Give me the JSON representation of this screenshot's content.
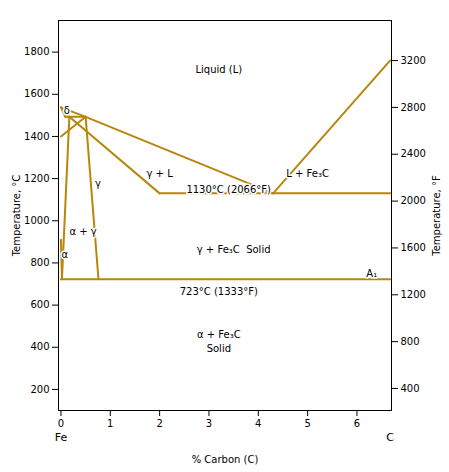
{
  "chart_data": {
    "type": "line",
    "xlabel": "% Carbon (C)",
    "ylabel": "Temperature, °C",
    "y2label": "Temperature, °F",
    "xlim": [
      -0.05,
      6.7
    ],
    "ylim": [
      100,
      1950
    ],
    "xticks": [
      0,
      1,
      2,
      3,
      4,
      5,
      6
    ],
    "yticks": [
      200,
      400,
      600,
      800,
      1000,
      1200,
      1400,
      1600,
      1800
    ],
    "y2lim": [
      212,
      3542
    ],
    "y2ticks": [
      400,
      800,
      1200,
      1600,
      2000,
      2400,
      2800,
      3200
    ],
    "color": "#B8860B",
    "segments": [
      {
        "x": [
          0.0,
          0.5
        ],
        "y": [
          1538,
          1493
        ]
      },
      {
        "x": [
          0.5,
          4.3
        ],
        "y": [
          1493,
          1130
        ]
      },
      {
        "x": [
          4.3,
          6.67
        ],
        "y": [
          1130,
          1760
        ]
      },
      {
        "x": [
          0.09,
          0.5
        ],
        "y": [
          1493,
          1493
        ]
      },
      {
        "x": [
          0.0,
          0.09
        ],
        "y": [
          1538,
          1493
        ]
      },
      {
        "x": [
          0.09,
          0.17
        ],
        "y": [
          1493,
          1493
        ]
      },
      {
        "x": [
          0.17,
          2.0
        ],
        "y": [
          1493,
          1130
        ]
      },
      {
        "x": [
          0.0,
          0.5
        ],
        "y": [
          1400,
          1493
        ]
      },
      {
        "x": [
          0.5,
          0.76
        ],
        "y": [
          1493,
          723
        ]
      },
      {
        "x": [
          0.0,
          0.02
        ],
        "y": [
          910,
          723
        ]
      },
      {
        "x": [
          0.02,
          0.17
        ],
        "y": [
          723,
          1493
        ]
      },
      {
        "x": [
          2.0,
          6.67
        ],
        "y": [
          1130,
          1130
        ]
      },
      {
        "x": [
          0.0,
          6.67
        ],
        "y": [
          723,
          723
        ]
      }
    ],
    "annotations": [
      {
        "text": "Liquid (L)",
        "x": 3.2,
        "y": 1720
      },
      {
        "text": "γ",
        "x": 0.75,
        "y": 1180
      },
      {
        "text": "γ + L",
        "x": 2.0,
        "y": 1230
      },
      {
        "text": "L + Fe₃C",
        "x": 5.0,
        "y": 1230
      },
      {
        "text": "γ + Fe₃C  Solid",
        "x": 3.5,
        "y": 870
      },
      {
        "text": "α + Fe₃C\nSolid",
        "x": 3.2,
        "y": 430
      },
      {
        "text": "δ",
        "x": 0.12,
        "y": 1530
      },
      {
        "text": "α",
        "x": 0.08,
        "y": 845
      },
      {
        "text": "A₁",
        "x": 6.3,
        "y": 755
      },
      {
        "text": "α + γ",
        "x": 0.45,
        "y": 955
      },
      {
        "text": "1130°C (2066°F)",
        "x": 3.4,
        "y": 1155
      },
      {
        "text": "723°C (1333°F)",
        "x": 3.2,
        "y": 668
      },
      {
        "text": "Fe",
        "x": 0.0
      },
      {
        "text": "C",
        "x": 6.67
      }
    ]
  }
}
